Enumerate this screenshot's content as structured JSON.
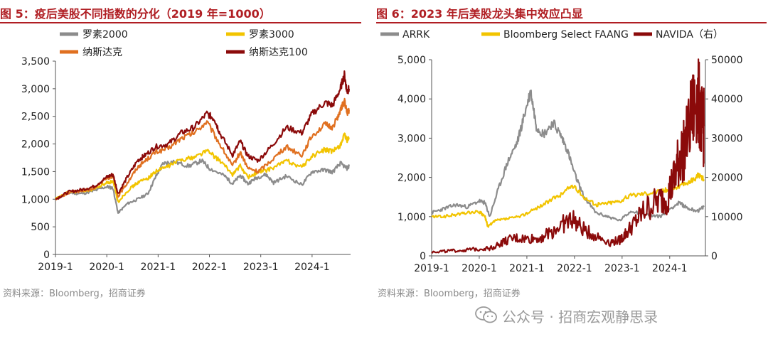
{
  "left": {
    "title": "图 5：疫后美股不同指数的分化（2019 年=1000）",
    "source": "资料来源：Bloomberg，招商证券",
    "chart_data": {
      "type": "line",
      "x_ticks": [
        "2019-1",
        "2020-1",
        "2021-1",
        "2022-1",
        "2023-1",
        "2024-1"
      ],
      "y_ticks": [
        "0",
        "500",
        "1,000",
        "1,500",
        "2,000",
        "2,500",
        "3,000",
        "3,500"
      ],
      "ylim": [
        0,
        3500
      ],
      "xlim": [
        2019.0,
        2024.75
      ],
      "legend_position": "top",
      "series": [
        {
          "name": "罗素2000",
          "color": "#8c8c8c",
          "points": [
            [
              2019.0,
              1000
            ],
            [
              2019.25,
              1120
            ],
            [
              2019.5,
              1100
            ],
            [
              2019.75,
              1150
            ],
            [
              2020.0,
              1230
            ],
            [
              2020.12,
              1200
            ],
            [
              2020.22,
              750
            ],
            [
              2020.4,
              920
            ],
            [
              2020.6,
              1000
            ],
            [
              2020.8,
              1100
            ],
            [
              2020.95,
              1400
            ],
            [
              2021.1,
              1650
            ],
            [
              2021.3,
              1680
            ],
            [
              2021.6,
              1600
            ],
            [
              2021.85,
              1700
            ],
            [
              2022.0,
              1560
            ],
            [
              2022.3,
              1420
            ],
            [
              2022.45,
              1280
            ],
            [
              2022.6,
              1430
            ],
            [
              2022.75,
              1280
            ],
            [
              2022.9,
              1380
            ],
            [
              2023.1,
              1450
            ],
            [
              2023.25,
              1300
            ],
            [
              2023.5,
              1420
            ],
            [
              2023.8,
              1260
            ],
            [
              2024.0,
              1500
            ],
            [
              2024.25,
              1530
            ],
            [
              2024.4,
              1490
            ],
            [
              2024.55,
              1650
            ],
            [
              2024.68,
              1560
            ],
            [
              2024.72,
              1600
            ]
          ]
        },
        {
          "name": "罗素3000",
          "color": "#f2c400",
          "points": [
            [
              2019.0,
              1000
            ],
            [
              2019.25,
              1120
            ],
            [
              2019.5,
              1150
            ],
            [
              2019.75,
              1180
            ],
            [
              2020.0,
              1300
            ],
            [
              2020.12,
              1320
            ],
            [
              2020.22,
              950
            ],
            [
              2020.4,
              1150
            ],
            [
              2020.6,
              1300
            ],
            [
              2020.8,
              1380
            ],
            [
              2020.95,
              1500
            ],
            [
              2021.2,
              1600
            ],
            [
              2021.45,
              1720
            ],
            [
              2021.7,
              1760
            ],
            [
              2021.95,
              1880
            ],
            [
              2022.2,
              1700
            ],
            [
              2022.45,
              1450
            ],
            [
              2022.6,
              1600
            ],
            [
              2022.75,
              1400
            ],
            [
              2022.95,
              1480
            ],
            [
              2023.2,
              1550
            ],
            [
              2023.5,
              1700
            ],
            [
              2023.8,
              1580
            ],
            [
              2024.0,
              1780
            ],
            [
              2024.25,
              1900
            ],
            [
              2024.4,
              1860
            ],
            [
              2024.55,
              1980
            ],
            [
              2024.63,
              2160
            ],
            [
              2024.68,
              2060
            ],
            [
              2024.72,
              2120
            ]
          ]
        },
        {
          "name": "纳斯达克",
          "color": "#e07020",
          "points": [
            [
              2019.0,
              1000
            ],
            [
              2019.25,
              1120
            ],
            [
              2019.5,
              1150
            ],
            [
              2019.75,
              1200
            ],
            [
              2020.0,
              1380
            ],
            [
              2020.12,
              1420
            ],
            [
              2020.22,
              1050
            ],
            [
              2020.4,
              1300
            ],
            [
              2020.6,
              1580
            ],
            [
              2020.75,
              1700
            ],
            [
              2020.95,
              1850
            ],
            [
              2021.2,
              1920
            ],
            [
              2021.45,
              2100
            ],
            [
              2021.7,
              2200
            ],
            [
              2021.95,
              2400
            ],
            [
              2022.2,
              2000
            ],
            [
              2022.45,
              1600
            ],
            [
              2022.6,
              1850
            ],
            [
              2022.75,
              1560
            ],
            [
              2022.95,
              1500
            ],
            [
              2023.2,
              1700
            ],
            [
              2023.5,
              1950
            ],
            [
              2023.8,
              1800
            ],
            [
              2024.0,
              2150
            ],
            [
              2024.25,
              2350
            ],
            [
              2024.4,
              2300
            ],
            [
              2024.55,
              2600
            ],
            [
              2024.63,
              2780
            ],
            [
              2024.68,
              2550
            ],
            [
              2024.72,
              2620
            ]
          ]
        },
        {
          "name": "纳斯达克100",
          "color": "#8b0a0a",
          "points": [
            [
              2019.0,
              1000
            ],
            [
              2019.25,
              1130
            ],
            [
              2019.5,
              1170
            ],
            [
              2019.75,
              1230
            ],
            [
              2020.0,
              1400
            ],
            [
              2020.12,
              1450
            ],
            [
              2020.22,
              1100
            ],
            [
              2020.4,
              1400
            ],
            [
              2020.6,
              1700
            ],
            [
              2020.75,
              1800
            ],
            [
              2020.95,
              1950
            ],
            [
              2021.2,
              2000
            ],
            [
              2021.45,
              2200
            ],
            [
              2021.7,
              2300
            ],
            [
              2021.95,
              2550
            ],
            [
              2022.1,
              2450
            ],
            [
              2022.2,
              2200
            ],
            [
              2022.45,
              1800
            ],
            [
              2022.6,
              2050
            ],
            [
              2022.75,
              1780
            ],
            [
              2022.95,
              1700
            ],
            [
              2023.2,
              1950
            ],
            [
              2023.5,
              2300
            ],
            [
              2023.8,
              2200
            ],
            [
              2024.0,
              2550
            ],
            [
              2024.25,
              2750
            ],
            [
              2024.4,
              2700
            ],
            [
              2024.55,
              3000
            ],
            [
              2024.63,
              3250
            ],
            [
              2024.68,
              2950
            ],
            [
              2024.72,
              3000
            ]
          ]
        }
      ]
    }
  },
  "right": {
    "title": "图 6：2023 年后美股龙头集中效应凸显",
    "source": "资料来源：Bloomberg，招商证券",
    "chart_data": {
      "type": "line",
      "x_ticks": [
        "2019-1",
        "2020-1",
        "2021-1",
        "2022-1",
        "2023-1",
        "2024-1"
      ],
      "y_left_ticks": [
        "0",
        "1,000",
        "2,000",
        "3,000",
        "4,000",
        "5,000"
      ],
      "y_right_ticks": [
        "0",
        "10000",
        "20000",
        "30000",
        "40000",
        "50000"
      ],
      "ylim_left": [
        0,
        5000
      ],
      "ylim_right": [
        0,
        50000
      ],
      "xlim": [
        2019.0,
        2024.75
      ],
      "legend_position": "top",
      "series": [
        {
          "name": "ARRK",
          "axis": "left",
          "color": "#8c8c8c",
          "points": [
            [
              2019.0,
              1100
            ],
            [
              2019.25,
              1200
            ],
            [
              2019.5,
              1300
            ],
            [
              2019.75,
              1250
            ],
            [
              2020.0,
              1400
            ],
            [
              2020.12,
              1350
            ],
            [
              2020.22,
              1000
            ],
            [
              2020.4,
              1700
            ],
            [
              2020.6,
              2400
            ],
            [
              2020.8,
              2900
            ],
            [
              2020.95,
              3600
            ],
            [
              2021.08,
              4200
            ],
            [
              2021.2,
              3300
            ],
            [
              2021.35,
              3100
            ],
            [
              2021.55,
              3400
            ],
            [
              2021.7,
              3100
            ],
            [
              2021.85,
              2700
            ],
            [
              2022.0,
              2100
            ],
            [
              2022.2,
              1500
            ],
            [
              2022.45,
              1100
            ],
            [
              2022.7,
              1000
            ],
            [
              2022.95,
              900
            ],
            [
              2023.2,
              1150
            ],
            [
              2023.5,
              1050
            ],
            [
              2023.8,
              1000
            ],
            [
              2024.0,
              1200
            ],
            [
              2024.2,
              1350
            ],
            [
              2024.4,
              1200
            ],
            [
              2024.6,
              1150
            ],
            [
              2024.72,
              1250
            ]
          ]
        },
        {
          "name": "Bloomberg Select FAANG",
          "axis": "left",
          "color": "#f2c400",
          "points": [
            [
              2019.0,
              1000
            ],
            [
              2019.25,
              1000
            ],
            [
              2019.5,
              1050
            ],
            [
              2019.75,
              1100
            ],
            [
              2020.0,
              1120
            ],
            [
              2020.12,
              1000
            ],
            [
              2020.18,
              750
            ],
            [
              2020.35,
              900
            ],
            [
              2020.6,
              950
            ],
            [
              2020.85,
              1000
            ],
            [
              2021.1,
              1150
            ],
            [
              2021.4,
              1350
            ],
            [
              2021.7,
              1550
            ],
            [
              2021.95,
              1800
            ],
            [
              2022.2,
              1500
            ],
            [
              2022.45,
              1300
            ],
            [
              2022.7,
              1350
            ],
            [
              2022.95,
              1400
            ],
            [
              2023.2,
              1550
            ],
            [
              2023.5,
              1600
            ],
            [
              2023.8,
              1650
            ],
            [
              2024.0,
              1700
            ],
            [
              2024.25,
              1800
            ],
            [
              2024.45,
              1900
            ],
            [
              2024.6,
              2050
            ],
            [
              2024.72,
              1950
            ]
          ]
        },
        {
          "name": "NAVIDA（右）",
          "axis": "right",
          "color": "#8b0a0a",
          "points": [
            [
              2019.0,
              1000
            ],
            [
              2019.25,
              1200
            ],
            [
              2019.5,
              1300
            ],
            [
              2019.75,
              1500
            ],
            [
              2020.0,
              1800
            ],
            [
              2020.25,
              2000
            ],
            [
              2020.5,
              3500
            ],
            [
              2020.75,
              4500
            ],
            [
              2021.0,
              4300
            ],
            [
              2021.25,
              4500
            ],
            [
              2021.5,
              6000
            ],
            [
              2021.75,
              8000
            ],
            [
              2021.95,
              9500
            ],
            [
              2022.15,
              7000
            ],
            [
              2022.45,
              5000
            ],
            [
              2022.75,
              3500
            ],
            [
              2022.95,
              4000
            ],
            [
              2023.1,
              6000
            ],
            [
              2023.3,
              9000
            ],
            [
              2023.5,
              12000
            ],
            [
              2023.75,
              14000
            ],
            [
              2023.95,
              15000
            ],
            [
              2024.1,
              20000
            ],
            [
              2024.2,
              25000
            ],
            [
              2024.3,
              27000
            ],
            [
              2024.45,
              35000
            ],
            [
              2024.55,
              40000
            ],
            [
              2024.63,
              38000
            ],
            [
              2024.7,
              32000
            ],
            [
              2024.72,
              33000
            ]
          ]
        }
      ]
    }
  },
  "watermark": {
    "text": "公众号 · 招商宏观静思录"
  }
}
